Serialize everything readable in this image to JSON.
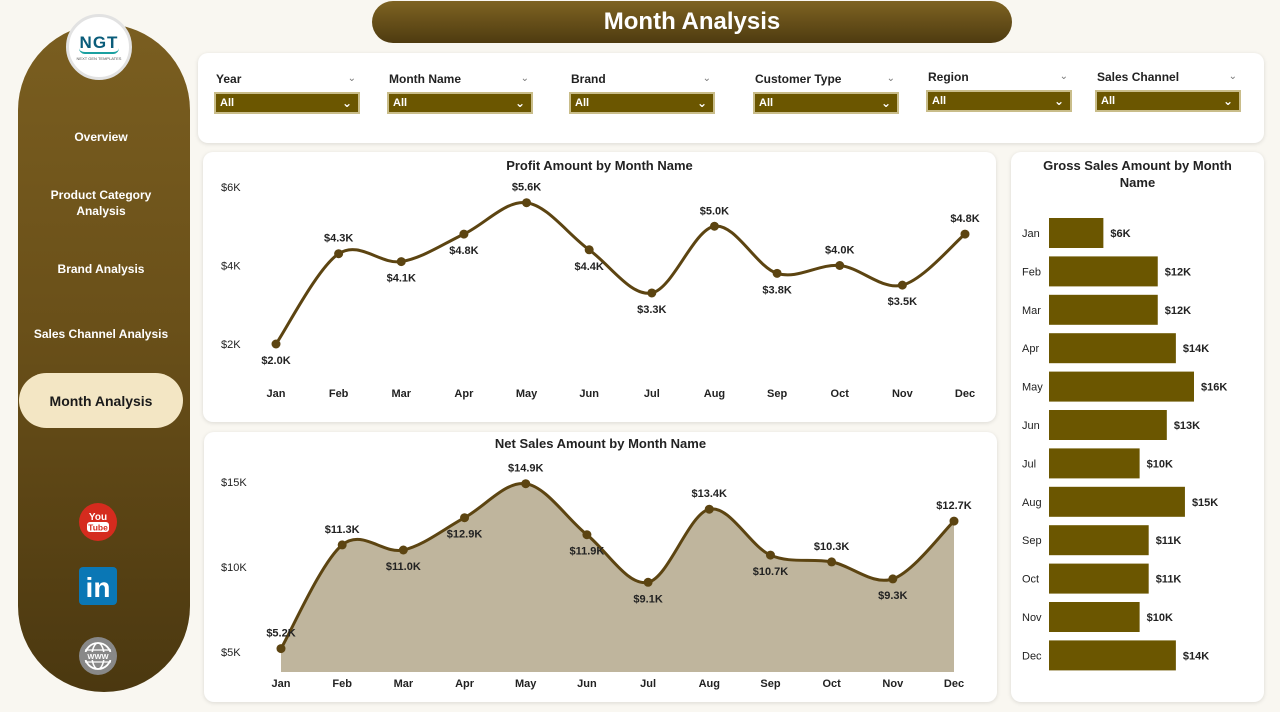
{
  "header": {
    "title": "Month Analysis"
  },
  "logo": {
    "text": "NGT",
    "subtitle": "NEXT GEN TEMPLATES"
  },
  "nav": {
    "items": [
      {
        "label": "Overview"
      },
      {
        "label": "Product Category Analysis"
      },
      {
        "label": "Brand Analysis"
      },
      {
        "label": "Sales Channel Analysis"
      },
      {
        "label": "Month Analysis"
      }
    ]
  },
  "social": {
    "youtube_text_1": "You",
    "youtube_text_2": "Tube",
    "linkedin_text": "in",
    "web_text": "WWW"
  },
  "filters": [
    {
      "label": "Year",
      "value": "All"
    },
    {
      "label": "Month Name",
      "value": "All"
    },
    {
      "label": "Brand",
      "value": "All"
    },
    {
      "label": "Customer Type",
      "value": "All"
    },
    {
      "label": "Region",
      "value": "All"
    },
    {
      "label": "Sales Channel",
      "value": "All"
    }
  ],
  "colors": {
    "accent": "#6b5600",
    "line": "#5c4411",
    "area": "#bfb59d",
    "nav_active": "#f3e6c4"
  },
  "chart_data": [
    {
      "type": "line",
      "title": "Profit Amount by Month Name",
      "categories": [
        "Jan",
        "Feb",
        "Mar",
        "Apr",
        "May",
        "Jun",
        "Jul",
        "Aug",
        "Sep",
        "Oct",
        "Nov",
        "Dec"
      ],
      "values": [
        2.0,
        4.3,
        4.1,
        4.8,
        5.6,
        4.4,
        3.3,
        5.0,
        3.8,
        4.0,
        3.5,
        4.8
      ],
      "labels": [
        "$2.0K",
        "$4.3K",
        "$4.1K",
        "$4.8K",
        "$5.6K",
        "$4.4K",
        "$3.3K",
        "$5.0K",
        "$3.8K",
        "$4.0K",
        "$3.5K",
        "$4.8K"
      ],
      "y_ticks": [
        "$6K",
        "$4K",
        "$2K"
      ],
      "ylim": [
        2,
        6
      ],
      "unit": "K"
    },
    {
      "type": "area",
      "title": "Net Sales Amount by Month Name",
      "categories": [
        "Jan",
        "Feb",
        "Mar",
        "Apr",
        "May",
        "Jun",
        "Jul",
        "Aug",
        "Sep",
        "Oct",
        "Nov",
        "Dec"
      ],
      "values": [
        5.2,
        11.3,
        11.0,
        12.9,
        14.9,
        11.9,
        9.1,
        13.4,
        10.7,
        10.3,
        9.3,
        12.7
      ],
      "labels": [
        "$5.2K",
        "$11.3K",
        "$11.0K",
        "$12.9K",
        "$14.9K",
        "$11.9K",
        "$9.1K",
        "$13.4K",
        "$10.7K",
        "$10.3K",
        "$9.3K",
        "$12.7K"
      ],
      "y_ticks": [
        "$15K",
        "$10K",
        "$5K"
      ],
      "ylim": [
        5,
        15
      ],
      "unit": "K"
    },
    {
      "type": "bar",
      "title": "Gross Sales Amount by Month Name",
      "categories": [
        "Jan",
        "Feb",
        "Mar",
        "Apr",
        "May",
        "Jun",
        "Jul",
        "Aug",
        "Sep",
        "Oct",
        "Nov",
        "Dec"
      ],
      "values": [
        6,
        12,
        12,
        14,
        16,
        13,
        10,
        15,
        11,
        11,
        10,
        14
      ],
      "labels": [
        "$6K",
        "$12K",
        "$12K",
        "$14K",
        "$16K",
        "$13K",
        "$10K",
        "$15K",
        "$11K",
        "$11K",
        "$10K",
        "$14K"
      ]
    }
  ]
}
